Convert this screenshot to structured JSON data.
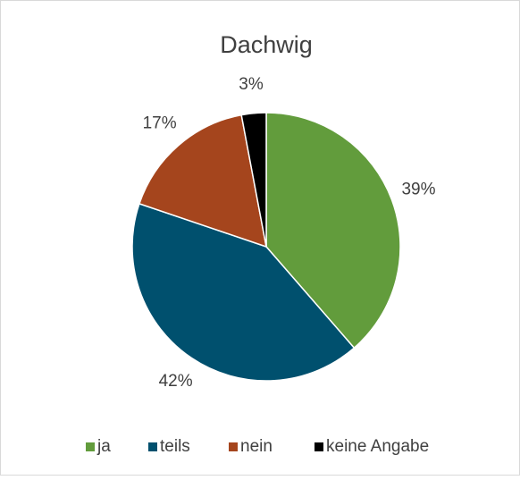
{
  "chart_data": {
    "type": "pie",
    "title": "Dachwig",
    "categories": [
      "ja",
      "teils",
      "nein",
      "keine Angabe"
    ],
    "values": [
      39,
      42,
      17,
      3
    ],
    "value_labels": [
      "39%",
      "42%",
      "17%",
      "3%"
    ],
    "colors": [
      "#629c3c",
      "#00506e",
      "#a5451d",
      "#000000"
    ],
    "legend": "bottom"
  }
}
